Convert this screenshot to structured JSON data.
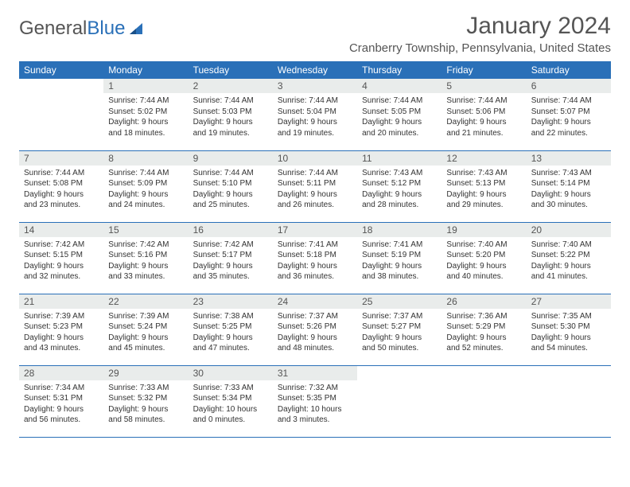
{
  "logo": {
    "part1": "General",
    "part2": "Blue"
  },
  "title": "January 2024",
  "location": "Cranberry Township, Pennsylvania, United States",
  "colors": {
    "header_bg": "#2a70b8",
    "header_text": "#ffffff",
    "daynum_bg": "#e9eceb",
    "text": "#333333",
    "border": "#2a70b8"
  },
  "typography": {
    "title_fontsize": 30,
    "location_fontsize": 15,
    "th_fontsize": 12,
    "daynum_fontsize": 12,
    "body_fontsize": 10
  },
  "weekdays": [
    "Sunday",
    "Monday",
    "Tuesday",
    "Wednesday",
    "Thursday",
    "Friday",
    "Saturday"
  ],
  "weeks": [
    [
      {
        "n": "",
        "lines": []
      },
      {
        "n": "1",
        "lines": [
          "Sunrise: 7:44 AM",
          "Sunset: 5:02 PM",
          "Daylight: 9 hours",
          "and 18 minutes."
        ]
      },
      {
        "n": "2",
        "lines": [
          "Sunrise: 7:44 AM",
          "Sunset: 5:03 PM",
          "Daylight: 9 hours",
          "and 19 minutes."
        ]
      },
      {
        "n": "3",
        "lines": [
          "Sunrise: 7:44 AM",
          "Sunset: 5:04 PM",
          "Daylight: 9 hours",
          "and 19 minutes."
        ]
      },
      {
        "n": "4",
        "lines": [
          "Sunrise: 7:44 AM",
          "Sunset: 5:05 PM",
          "Daylight: 9 hours",
          "and 20 minutes."
        ]
      },
      {
        "n": "5",
        "lines": [
          "Sunrise: 7:44 AM",
          "Sunset: 5:06 PM",
          "Daylight: 9 hours",
          "and 21 minutes."
        ]
      },
      {
        "n": "6",
        "lines": [
          "Sunrise: 7:44 AM",
          "Sunset: 5:07 PM",
          "Daylight: 9 hours",
          "and 22 minutes."
        ]
      }
    ],
    [
      {
        "n": "7",
        "lines": [
          "Sunrise: 7:44 AM",
          "Sunset: 5:08 PM",
          "Daylight: 9 hours",
          "and 23 minutes."
        ]
      },
      {
        "n": "8",
        "lines": [
          "Sunrise: 7:44 AM",
          "Sunset: 5:09 PM",
          "Daylight: 9 hours",
          "and 24 minutes."
        ]
      },
      {
        "n": "9",
        "lines": [
          "Sunrise: 7:44 AM",
          "Sunset: 5:10 PM",
          "Daylight: 9 hours",
          "and 25 minutes."
        ]
      },
      {
        "n": "10",
        "lines": [
          "Sunrise: 7:44 AM",
          "Sunset: 5:11 PM",
          "Daylight: 9 hours",
          "and 26 minutes."
        ]
      },
      {
        "n": "11",
        "lines": [
          "Sunrise: 7:43 AM",
          "Sunset: 5:12 PM",
          "Daylight: 9 hours",
          "and 28 minutes."
        ]
      },
      {
        "n": "12",
        "lines": [
          "Sunrise: 7:43 AM",
          "Sunset: 5:13 PM",
          "Daylight: 9 hours",
          "and 29 minutes."
        ]
      },
      {
        "n": "13",
        "lines": [
          "Sunrise: 7:43 AM",
          "Sunset: 5:14 PM",
          "Daylight: 9 hours",
          "and 30 minutes."
        ]
      }
    ],
    [
      {
        "n": "14",
        "lines": [
          "Sunrise: 7:42 AM",
          "Sunset: 5:15 PM",
          "Daylight: 9 hours",
          "and 32 minutes."
        ]
      },
      {
        "n": "15",
        "lines": [
          "Sunrise: 7:42 AM",
          "Sunset: 5:16 PM",
          "Daylight: 9 hours",
          "and 33 minutes."
        ]
      },
      {
        "n": "16",
        "lines": [
          "Sunrise: 7:42 AM",
          "Sunset: 5:17 PM",
          "Daylight: 9 hours",
          "and 35 minutes."
        ]
      },
      {
        "n": "17",
        "lines": [
          "Sunrise: 7:41 AM",
          "Sunset: 5:18 PM",
          "Daylight: 9 hours",
          "and 36 minutes."
        ]
      },
      {
        "n": "18",
        "lines": [
          "Sunrise: 7:41 AM",
          "Sunset: 5:19 PM",
          "Daylight: 9 hours",
          "and 38 minutes."
        ]
      },
      {
        "n": "19",
        "lines": [
          "Sunrise: 7:40 AM",
          "Sunset: 5:20 PM",
          "Daylight: 9 hours",
          "and 40 minutes."
        ]
      },
      {
        "n": "20",
        "lines": [
          "Sunrise: 7:40 AM",
          "Sunset: 5:22 PM",
          "Daylight: 9 hours",
          "and 41 minutes."
        ]
      }
    ],
    [
      {
        "n": "21",
        "lines": [
          "Sunrise: 7:39 AM",
          "Sunset: 5:23 PM",
          "Daylight: 9 hours",
          "and 43 minutes."
        ]
      },
      {
        "n": "22",
        "lines": [
          "Sunrise: 7:39 AM",
          "Sunset: 5:24 PM",
          "Daylight: 9 hours",
          "and 45 minutes."
        ]
      },
      {
        "n": "23",
        "lines": [
          "Sunrise: 7:38 AM",
          "Sunset: 5:25 PM",
          "Daylight: 9 hours",
          "and 47 minutes."
        ]
      },
      {
        "n": "24",
        "lines": [
          "Sunrise: 7:37 AM",
          "Sunset: 5:26 PM",
          "Daylight: 9 hours",
          "and 48 minutes."
        ]
      },
      {
        "n": "25",
        "lines": [
          "Sunrise: 7:37 AM",
          "Sunset: 5:27 PM",
          "Daylight: 9 hours",
          "and 50 minutes."
        ]
      },
      {
        "n": "26",
        "lines": [
          "Sunrise: 7:36 AM",
          "Sunset: 5:29 PM",
          "Daylight: 9 hours",
          "and 52 minutes."
        ]
      },
      {
        "n": "27",
        "lines": [
          "Sunrise: 7:35 AM",
          "Sunset: 5:30 PM",
          "Daylight: 9 hours",
          "and 54 minutes."
        ]
      }
    ],
    [
      {
        "n": "28",
        "lines": [
          "Sunrise: 7:34 AM",
          "Sunset: 5:31 PM",
          "Daylight: 9 hours",
          "and 56 minutes."
        ]
      },
      {
        "n": "29",
        "lines": [
          "Sunrise: 7:33 AM",
          "Sunset: 5:32 PM",
          "Daylight: 9 hours",
          "and 58 minutes."
        ]
      },
      {
        "n": "30",
        "lines": [
          "Sunrise: 7:33 AM",
          "Sunset: 5:34 PM",
          "Daylight: 10 hours",
          "and 0 minutes."
        ]
      },
      {
        "n": "31",
        "lines": [
          "Sunrise: 7:32 AM",
          "Sunset: 5:35 PM",
          "Daylight: 10 hours",
          "and 3 minutes."
        ]
      },
      {
        "n": "",
        "lines": []
      },
      {
        "n": "",
        "lines": []
      },
      {
        "n": "",
        "lines": []
      }
    ]
  ]
}
